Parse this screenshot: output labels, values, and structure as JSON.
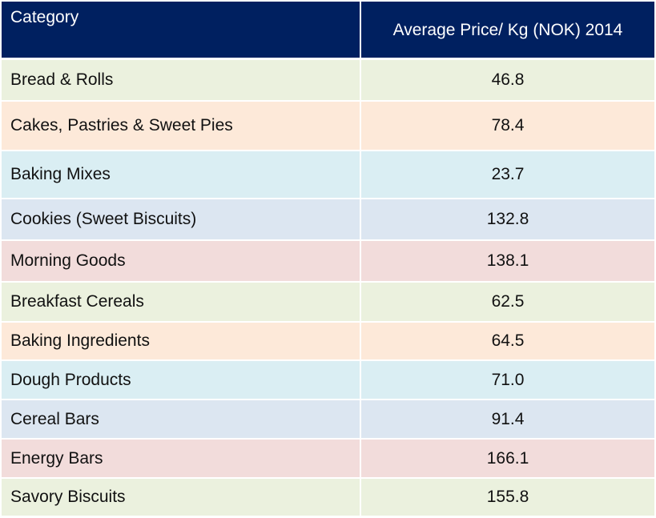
{
  "chart_data": {
    "type": "table",
    "columns": [
      "Category",
      "Average Price/ Kg (NOK) 2014"
    ],
    "rows": [
      {
        "category": "Bread & Rolls",
        "value": "46.8",
        "color": "#EBF1DE"
      },
      {
        "category": "Cakes, Pastries & Sweet Pies",
        "value": "78.4",
        "color": "#FDE9D9"
      },
      {
        "category": "Baking Mixes",
        "value": "23.7",
        "color": "#DAEEF3"
      },
      {
        "category": "Cookies (Sweet Biscuits)",
        "value": "132.8",
        "color": "#DCE6F1"
      },
      {
        "category": "Morning Goods",
        "value": "138.1",
        "color": "#F2DCDB"
      },
      {
        "category": "Breakfast Cereals",
        "value": "62.5",
        "color": "#EBF1DE"
      },
      {
        "category": "Baking Ingredients",
        "value": "64.5",
        "color": "#FDE9D9"
      },
      {
        "category": "Dough Products",
        "value": "71.0",
        "color": "#DAEEF3"
      },
      {
        "category": "Cereal Bars",
        "value": "91.4",
        "color": "#DCE6F1"
      },
      {
        "category": "Energy Bars",
        "value": "166.1",
        "color": "#F2DCDB"
      },
      {
        "category": "Savory Biscuits",
        "value": "155.8",
        "color": "#EBF1DE"
      }
    ],
    "header_color": "#002060"
  }
}
